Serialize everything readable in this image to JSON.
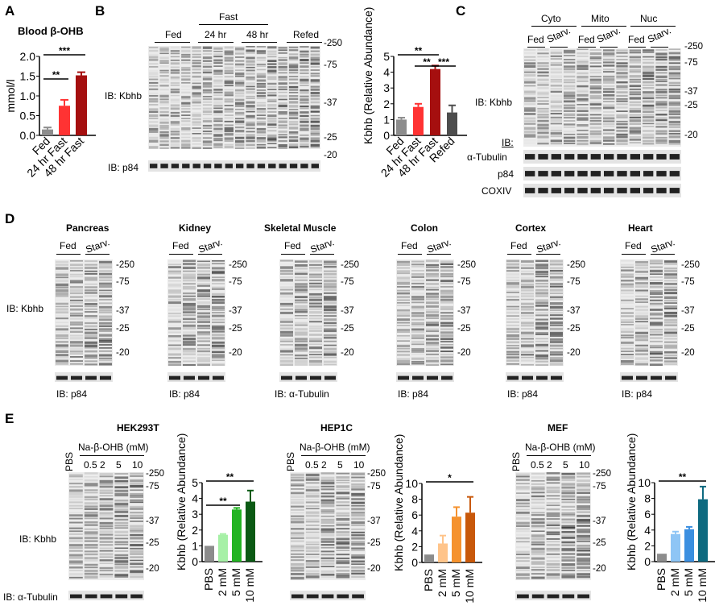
{
  "panels": {
    "A": {
      "label": "A",
      "title": "Blood β-OHB"
    },
    "B": {
      "label": "B",
      "fast": "Fast",
      "lanes": [
        "Fed",
        "24 hr",
        "48 hr",
        "Refed"
      ],
      "ib_main": "IB: Kbhb",
      "ib_load": "IB: p84",
      "markers": [
        "-250",
        "-75",
        "-37",
        "-25",
        "-20"
      ]
    },
    "C": {
      "label": "C",
      "fractions": [
        "Cyto",
        "Mito",
        "Nuc"
      ],
      "lanes": [
        "Fed",
        "Starv.",
        "Fed",
        "Starv.",
        "Fed",
        "Starv."
      ],
      "ib_main": "IB: Kbhb",
      "ib": "IB:",
      "loads": [
        "α-Tubulin",
        "p84",
        "COXIV"
      ],
      "markers": [
        "-250",
        "-75",
        "-37",
        "-25",
        "-20"
      ]
    },
    "D": {
      "label": "D",
      "ib_main": "IB: Kbhb",
      "lanes": [
        "Fed",
        "Starv."
      ],
      "tissues": [
        {
          "name": "Pancreas",
          "load": "IB: p84",
          "markers": [
            "-250",
            "-75",
            "-37",
            "-25",
            "-20"
          ]
        },
        {
          "name": "Kidney",
          "load": "IB: p84",
          "markers": [
            "-250",
            "-75",
            "-37",
            "-25",
            "-20"
          ]
        },
        {
          "name": "Skeletal Muscle",
          "load": "IB: α-Tubulin",
          "markers": [
            "-250",
            "-75",
            "-37",
            "-25",
            "-20"
          ]
        },
        {
          "name": "Colon",
          "load": "IB: p84",
          "markers": [
            "-250",
            "-75",
            "-37",
            "-25",
            "-20"
          ]
        },
        {
          "name": "Cortex",
          "load": "IB: p84",
          "markers": [
            "-250",
            "-75",
            "-37",
            "-25",
            "-20"
          ]
        },
        {
          "name": "Heart",
          "load": "IB: p84",
          "markers": [
            "-250",
            "-75",
            "-37",
            "-25",
            "-20"
          ]
        }
      ]
    },
    "E": {
      "label": "E",
      "ib_main": "IB: Kbhb",
      "ib_load": "IB: α-Tubulin",
      "treatment": "Na-β-OHB (mM)",
      "pbs": "PBS",
      "doses": [
        "0.5",
        "2",
        "5",
        "10"
      ],
      "cells": [
        "HEK293T",
        "HEP1C",
        "MEF"
      ],
      "markers": [
        "-250",
        "-75",
        "-37",
        "-25",
        "-20"
      ]
    }
  },
  "chart_data": [
    {
      "id": "A",
      "type": "bar",
      "title": "Blood β-OHB",
      "ylabel": "mmol/l",
      "ylim": [
        0,
        2.0
      ],
      "yticks": [
        "0.0",
        "0.5",
        "1.0",
        "1.5",
        "2.0"
      ],
      "categories": [
        "Fed",
        "24 hr Fast",
        "48 hr Fast"
      ],
      "values": [
        0.15,
        0.75,
        1.52
      ],
      "errors": [
        0.05,
        0.15,
        0.08
      ],
      "colors": [
        "#8c8c8c",
        "#ff3333",
        "#a50f0f"
      ],
      "sig": [
        {
          "from": 0,
          "to": 1,
          "label": "**"
        },
        {
          "from": 0,
          "to": 2,
          "label": "***"
        }
      ]
    },
    {
      "id": "B",
      "type": "bar",
      "ylabel": "Kbhb (Relative Abundance)",
      "ylim": [
        0,
        5
      ],
      "yticks": [
        "0",
        "1",
        "2",
        "3",
        "4",
        "5"
      ],
      "categories": [
        "Fed",
        "24 hr Fast",
        "48 hr Fast",
        "Refed"
      ],
      "values": [
        1.0,
        1.8,
        4.2,
        1.45
      ],
      "errors": [
        0.12,
        0.2,
        0.22,
        0.45
      ],
      "colors": [
        "#8c8c8c",
        "#ff3333",
        "#a50f0f",
        "#4d4d4d"
      ],
      "sig": [
        {
          "from": 0,
          "to": 2,
          "label": "**"
        },
        {
          "from": 1,
          "to": 2,
          "label": "**"
        },
        {
          "from": 2,
          "to": 3,
          "label": "***"
        }
      ]
    },
    {
      "id": "E1",
      "type": "bar",
      "ylabel": "Kbhb (Relative Abundance)",
      "ylim": [
        0,
        5
      ],
      "yticks": [
        "0",
        "1",
        "2",
        "3",
        "4",
        "5"
      ],
      "categories": [
        "PBS",
        "2 mM",
        "5 mM",
        "10 mM"
      ],
      "values": [
        1.0,
        1.7,
        3.3,
        3.8
      ],
      "errors": [
        0,
        0.05,
        0.1,
        0.7
      ],
      "colors": [
        "#8c8c8c",
        "#a6f0a6",
        "#22b422",
        "#0b5a14"
      ],
      "sig": [
        {
          "from": 0,
          "to": 2,
          "label": "**"
        },
        {
          "from": 0,
          "to": 3,
          "label": "**"
        }
      ]
    },
    {
      "id": "E2",
      "type": "bar",
      "ylabel": "Kbhb (Relative Abundance)",
      "ylim": [
        0,
        10
      ],
      "yticks": [
        "0",
        "2",
        "4",
        "6",
        "8",
        "10"
      ],
      "categories": [
        "PBS",
        "2 mM",
        "5 mM",
        "10 mM"
      ],
      "values": [
        1.0,
        2.4,
        5.8,
        6.3
      ],
      "errors": [
        0,
        1.0,
        1.2,
        2.0
      ],
      "colors": [
        "#8c8c8c",
        "#ffc48a",
        "#f5922e",
        "#c8580a"
      ],
      "sig": [
        {
          "from": 0,
          "to": 3,
          "label": "*"
        }
      ]
    },
    {
      "id": "E3",
      "type": "bar",
      "ylabel": "Kbhb (Relative Abundance)",
      "ylim": [
        0,
        10
      ],
      "yticks": [
        "0",
        "2",
        "4",
        "6",
        "8",
        "10"
      ],
      "categories": [
        "PBS",
        "2 mM",
        "5 mM",
        "10 mM"
      ],
      "values": [
        1.0,
        3.5,
        4.1,
        7.9
      ],
      "errors": [
        0,
        0.3,
        0.3,
        1.6
      ],
      "colors": [
        "#8c8c8c",
        "#8ec5f5",
        "#3b8fe0",
        "#0e6a80"
      ],
      "sig": [
        {
          "from": 0,
          "to": 3,
          "label": "**"
        }
      ]
    }
  ]
}
